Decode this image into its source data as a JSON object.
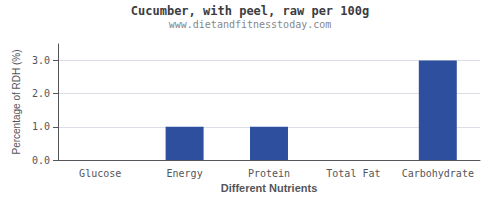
{
  "chart_data": {
    "type": "bar",
    "title": "Cucumber, with peel, raw per 100g",
    "subtitle": "www.dietandfitnesstoday.com",
    "xlabel": "Different Nutrients",
    "ylabel": "Percentage of RDH (%)",
    "categories": [
      "Glucose",
      "Energy",
      "Protein",
      "Total Fat",
      "Carbohydrate"
    ],
    "values": [
      0.0,
      1.0,
      1.0,
      0.0,
      3.0
    ],
    "color": "#2d4f9e",
    "ylim": [
      0,
      3.5
    ],
    "yticks": [
      {
        "value": 0.0,
        "label": "0.0"
      },
      {
        "value": 1.0,
        "label": "1.0"
      },
      {
        "value": 2.0,
        "label": "2.0"
      },
      {
        "value": 3.0,
        "label": "3.0"
      }
    ],
    "grid": true
  }
}
